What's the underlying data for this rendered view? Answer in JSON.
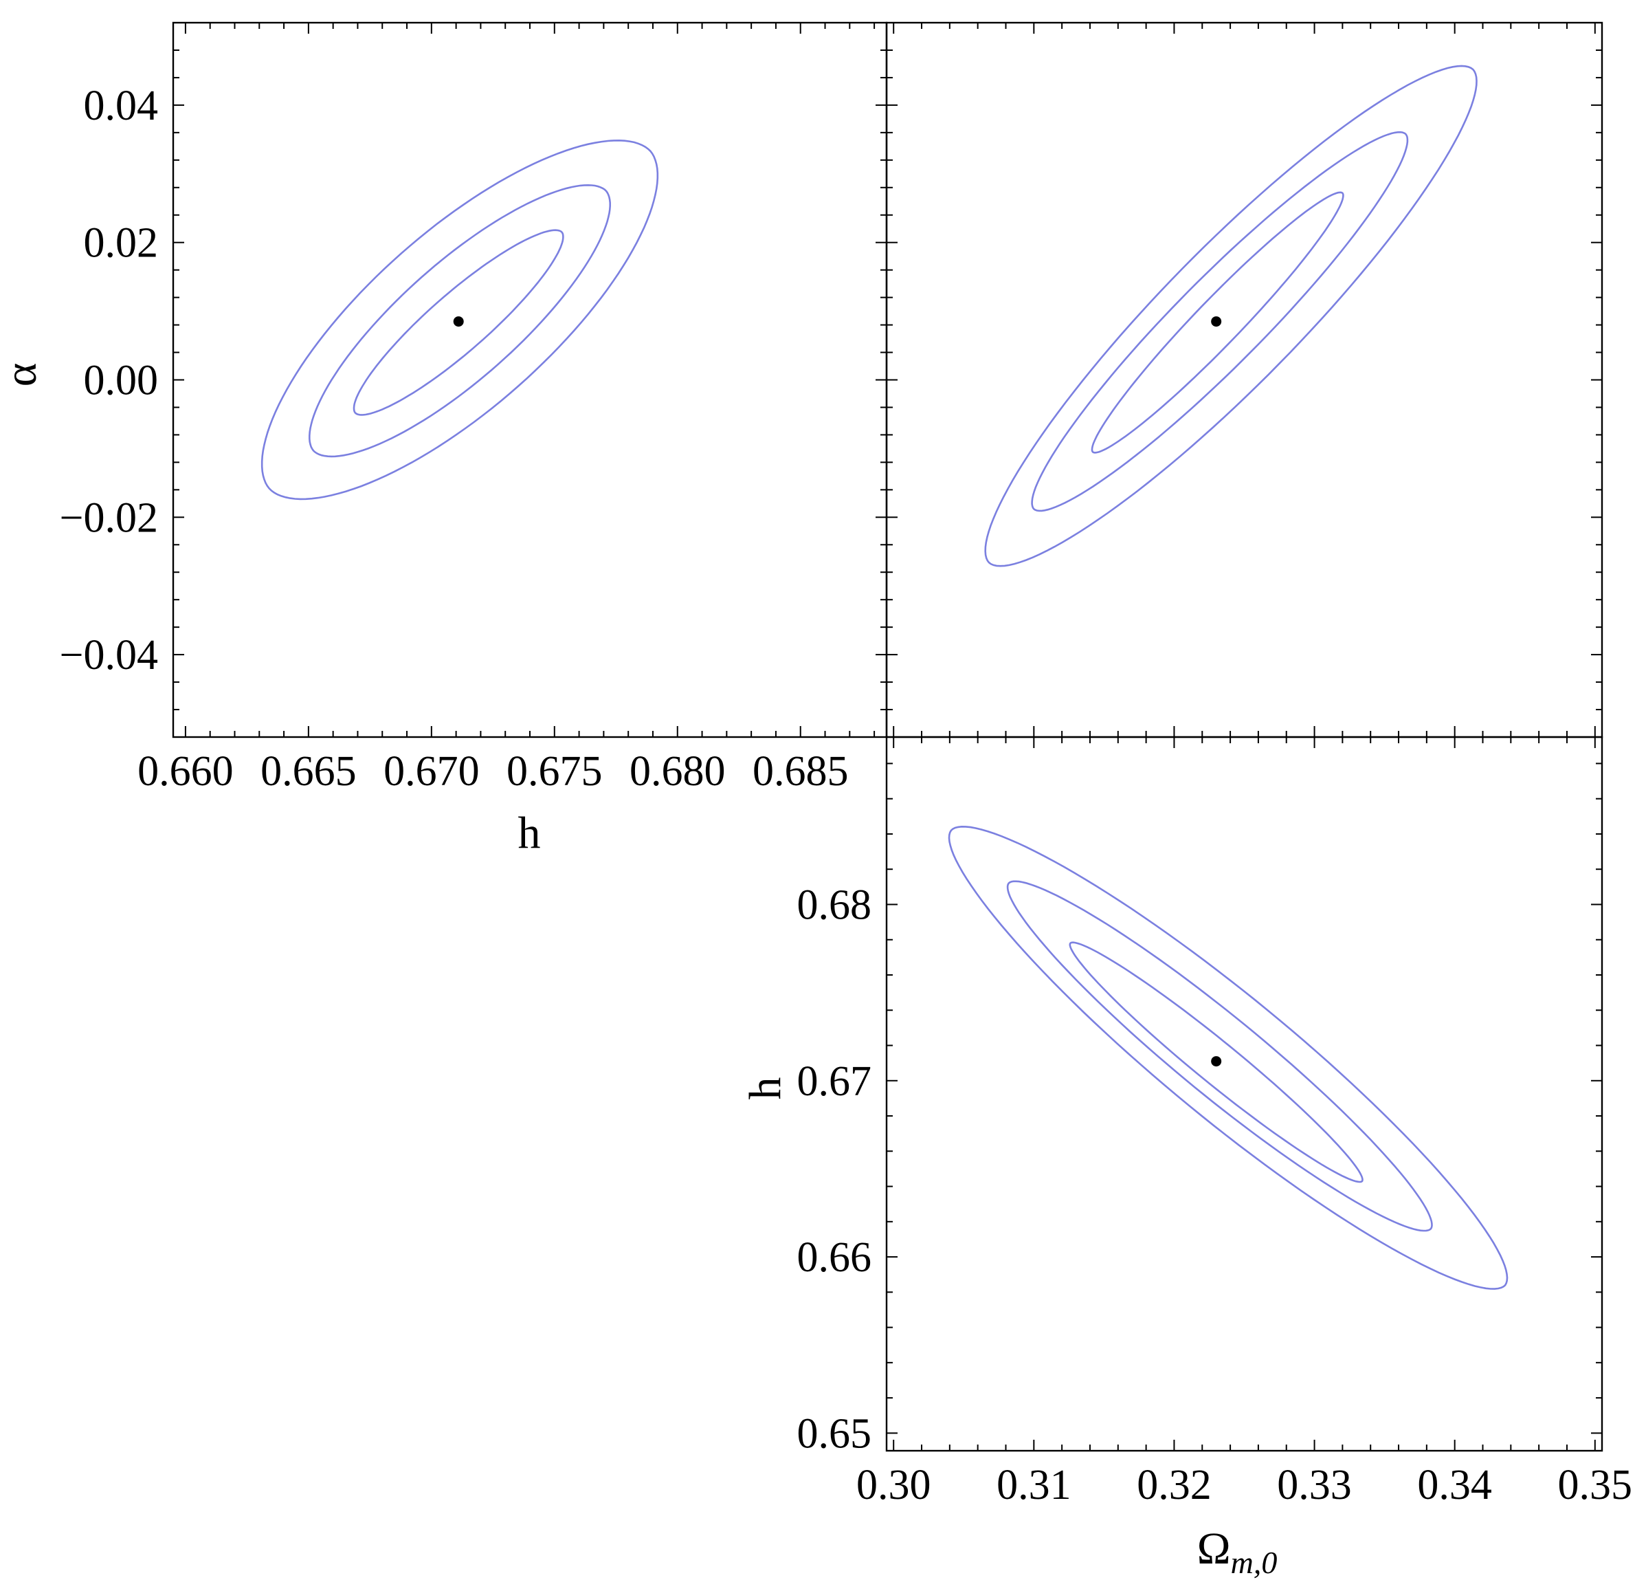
{
  "chart_data": [
    {
      "id": "alpha_vs_h",
      "type": "contour",
      "xlabel": "h",
      "ylabel": "α",
      "xlim": [
        0.6595,
        0.6885
      ],
      "ylim": [
        -0.052,
        0.052
      ],
      "xticks": [
        0.66,
        0.665,
        0.67,
        0.675,
        0.68,
        0.685
      ],
      "xtick_labels": [
        "0.660",
        "0.665",
        "0.670",
        "0.675",
        "0.680",
        "0.685"
      ],
      "yticks": [
        -0.04,
        -0.02,
        0.0,
        0.02,
        0.04
      ],
      "ytick_labels": [
        "−0.04",
        "−0.02",
        "0.00",
        "0.02",
        "0.04"
      ],
      "best_fit": {
        "x": 0.6711,
        "y": 0.0085
      },
      "contours": [
        {
          "level": 1,
          "start": {
            "x": 0.6669,
            "y": -0.0048
          },
          "end": {
            "x": 0.6753,
            "y": 0.0215
          },
          "half_width": 0.0019
        },
        {
          "level": 2,
          "start": {
            "x": 0.6652,
            "y": -0.0103
          },
          "end": {
            "x": 0.6771,
            "y": 0.0275
          },
          "half_width": 0.0038
        },
        {
          "level": 3,
          "start": {
            "x": 0.6634,
            "y": -0.0158
          },
          "end": {
            "x": 0.6789,
            "y": 0.0333
          },
          "half_width": 0.0058
        }
      ],
      "color": "#7b80e0"
    },
    {
      "id": "alpha_vs_omega",
      "type": "contour",
      "xlabel": "",
      "ylabel": "",
      "xlim": [
        0.2995,
        0.3505
      ],
      "ylim": [
        -0.052,
        0.052
      ],
      "xticks": [],
      "yticks": [
        -0.04,
        -0.02,
        0.0,
        0.02,
        0.04
      ],
      "best_fit": {
        "x": 0.323,
        "y": 0.0085
      },
      "contours": [
        {
          "level": 1,
          "start": {
            "x": 0.3142,
            "y": -0.0105
          },
          "end": {
            "x": 0.332,
            "y": 0.0272
          },
          "half_width": 0.0026
        },
        {
          "level": 2,
          "start": {
            "x": 0.31,
            "y": -0.0188
          },
          "end": {
            "x": 0.3365,
            "y": 0.0358
          },
          "half_width": 0.005
        },
        {
          "level": 3,
          "start": {
            "x": 0.3068,
            "y": -0.0266
          },
          "end": {
            "x": 0.3413,
            "y": 0.0452
          },
          "half_width": 0.0078
        }
      ],
      "color": "#7b80e0"
    },
    {
      "id": "h_vs_omega",
      "type": "contour",
      "xlabel": "Ω_{m,0}",
      "ylabel": "h",
      "xlim": [
        0.2995,
        0.3505
      ],
      "ylim": [
        0.649,
        0.6895
      ],
      "xticks": [
        0.3,
        0.31,
        0.32,
        0.33,
        0.34,
        0.35
      ],
      "xtick_labels": [
        "0.30",
        "0.31",
        "0.32",
        "0.33",
        "0.34",
        "0.35"
      ],
      "yticks": [
        0.65,
        0.66,
        0.67,
        0.68
      ],
      "ytick_labels": [
        "0.65",
        "0.66",
        "0.67",
        "0.68"
      ],
      "best_fit": {
        "x": 0.323,
        "y": 0.6711
      },
      "contours": [
        {
          "level": 1,
          "start": {
            "x": 0.3126,
            "y": 0.6778
          },
          "end": {
            "x": 0.3334,
            "y": 0.6643
          },
          "half_width": 0.0024
        },
        {
          "level": 2,
          "start": {
            "x": 0.3082,
            "y": 0.6812
          },
          "end": {
            "x": 0.3383,
            "y": 0.6616
          },
          "half_width": 0.0046
        },
        {
          "level": 3,
          "start": {
            "x": 0.3041,
            "y": 0.6842
          },
          "end": {
            "x": 0.3436,
            "y": 0.6584
          },
          "half_width": 0.0071
        }
      ],
      "color": "#7b80e0"
    }
  ],
  "labels": {
    "h_bottom_xlabel": "h",
    "alpha_ylabel": "α",
    "h_left_ylabel": "h",
    "omega_base": "Ω",
    "omega_sub": "m,0"
  }
}
